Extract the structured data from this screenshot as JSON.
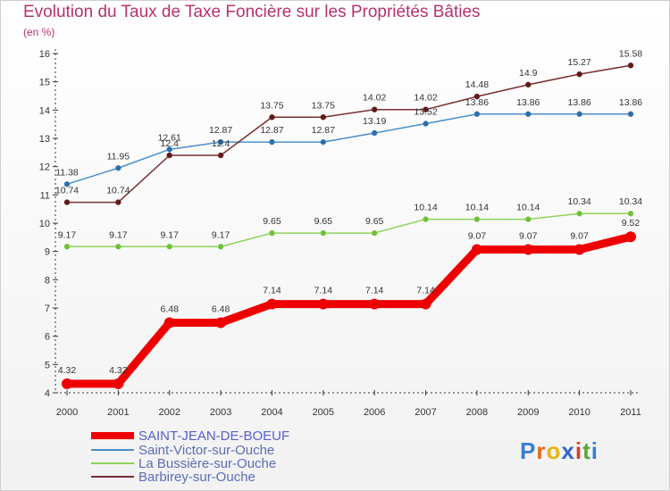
{
  "chart_data": {
    "type": "line",
    "title": "Evolution du Taux de Taxe Foncière sur les Propriétés Bâties",
    "subtitle": "(en %)",
    "xlabel": "",
    "ylabel": "",
    "x": [
      "2000",
      "2001",
      "2002",
      "2003",
      "2004",
      "2005",
      "2006",
      "2007",
      "2008",
      "2009",
      "2010",
      "2011"
    ],
    "yticks": [
      "4",
      "5",
      "6",
      "7",
      "8",
      "9",
      "10",
      "11",
      "12",
      "13",
      "14",
      "15",
      "16"
    ],
    "ylim": [
      4,
      16
    ],
    "series": [
      {
        "name": "SAINT-JEAN-DE-BOEUF",
        "color": "#ee0000",
        "bold": true,
        "values": [
          4.32,
          4.32,
          6.48,
          6.48,
          7.14,
          7.14,
          7.14,
          7.14,
          9.07,
          9.07,
          9.07,
          9.52
        ],
        "labels": [
          "4.32",
          "4.32",
          "6.48",
          "6.48",
          "7.14",
          "7.14",
          "7.14",
          "7.14",
          "9.07",
          "9.07",
          "9.07",
          "9.52"
        ]
      },
      {
        "name": "Saint-Victor-sur-Ouche",
        "color": "#4a8fc9",
        "marker": "#2e6ea8",
        "values": [
          11.38,
          11.95,
          12.61,
          12.87,
          12.87,
          12.87,
          13.19,
          13.52,
          13.86,
          13.86,
          13.86,
          13.86
        ],
        "labels": [
          "11.38",
          "11.95",
          "12.61",
          "12.87",
          "12.87",
          "12.87",
          "13.19",
          "13.52",
          "13.86",
          "13.86",
          "13.86",
          "13.86"
        ]
      },
      {
        "name": "La Bussière-sur-Ouche",
        "color": "#8ed35a",
        "marker": "#6fbf35",
        "values": [
          9.17,
          9.17,
          9.17,
          9.17,
          9.65,
          9.65,
          9.65,
          10.14,
          10.14,
          10.14,
          10.34,
          10.34
        ],
        "labels": [
          "9.17",
          "9.17",
          "9.17",
          "9.17",
          "9.65",
          "9.65",
          "9.65",
          "10.14",
          "10.14",
          "10.14",
          "10.34",
          "10.34"
        ]
      },
      {
        "name": "Barbirey-sur-Ouche",
        "color": "#7a2e2e",
        "marker": "#5e1a1a",
        "values": [
          10.74,
          10.74,
          12.4,
          12.4,
          13.75,
          13.75,
          14.02,
          14.02,
          14.48,
          14.9,
          15.27,
          15.58
        ],
        "labels": [
          "10.74",
          "10.74",
          "12.4",
          "12.4",
          "13.75",
          "13.75",
          "14.02",
          "14.02",
          "14.48",
          "14.9",
          "15.27",
          "15.58"
        ]
      }
    ]
  },
  "logo": {
    "text": "Proxiti",
    "letters": [
      "P",
      "r",
      "o",
      "x",
      "i",
      "t",
      "i"
    ],
    "colors": [
      "#3a7fd0",
      "#e36a1c",
      "#e9b313",
      "#2f66c8",
      "#d93a2c",
      "#5aa53c",
      "#3a7fd0"
    ]
  }
}
